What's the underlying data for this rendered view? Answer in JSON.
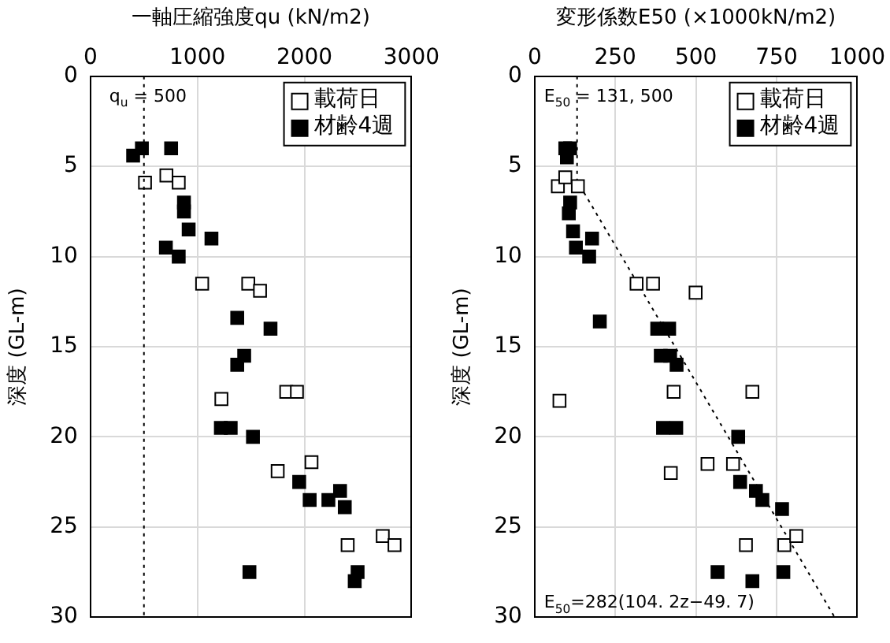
{
  "chart_data": [
    {
      "type": "scatter",
      "xlabel": "一軸圧縮強度qu (kN/m2)",
      "ylabel": "深度 (GL-m)",
      "xlim": [
        0,
        3000
      ],
      "xticks": [
        0,
        1000,
        2000,
        3000
      ],
      "ylim": [
        30,
        0
      ],
      "yticks": [
        0,
        5,
        10,
        15,
        20,
        25,
        30
      ],
      "grid": true,
      "legend": "top right",
      "marker": "square",
      "ref_lines": [
        {
          "axis": "x",
          "value": 500,
          "label": "q$_{u}$ = 500",
          "line_style": "dotted",
          "color": "#000000"
        }
      ],
      "series": [
        {
          "name": "載荷日",
          "color": "#ffffff",
          "x": [
            510,
            710,
            825,
            1044,
            1475,
            1585,
            1224,
            1830,
            1930,
            1750,
            2066,
            2404,
            2732,
            2842
          ],
          "values": [
            5.9,
            5.5,
            5.9,
            11.5,
            11.5,
            11.9,
            17.9,
            17.5,
            17.5,
            21.9,
            21.4,
            26.0,
            25.5,
            26.0
          ]
        },
        {
          "name": "材齢4週",
          "color": "#000000",
          "x": [
            481,
            399,
            754,
            874,
            874,
            918,
            1131,
            705,
            825,
            1372,
            1683,
            1437,
            1372,
            1219,
            1311,
            1519,
            1951,
            2049,
            2224,
            2333,
            2377,
            1486,
            2497,
            2470
          ],
          "values": [
            4.0,
            4.4,
            4.0,
            7.0,
            7.5,
            8.5,
            9.0,
            9.5,
            10.0,
            13.4,
            14.0,
            15.5,
            16.0,
            19.5,
            19.5,
            20.0,
            22.5,
            23.5,
            23.5,
            23.0,
            23.9,
            27.5,
            27.5,
            28.0
          ]
        }
      ]
    },
    {
      "type": "scatter",
      "xlabel": "変形係数E50 (×1000kN/m2)",
      "ylabel": "深度 (GL-m)",
      "xlim": [
        0,
        1000
      ],
      "xticks": [
        0,
        250,
        500,
        750,
        1000
      ],
      "ylim": [
        30,
        0
      ],
      "yticks": [
        0,
        5,
        10,
        15,
        20,
        25,
        30
      ],
      "grid": true,
      "legend": "top right",
      "marker": "square",
      "annotations": [
        "E$_{50}$ = 131, 500",
        "E$_{50}$=282(104. 2z−49. 7)"
      ],
      "series": [
        {
          "name": "載荷日",
          "color": "#ffffff",
          "x": [
            72,
            95,
            134,
            316,
            367,
            499,
            77,
            431,
            675,
            422,
            536,
            615,
            655,
            774,
            811
          ],
          "values": [
            6.1,
            5.6,
            6.1,
            11.5,
            11.5,
            12.0,
            18.0,
            17.5,
            17.5,
            22.0,
            21.5,
            21.5,
            26.0,
            26.0,
            25.5
          ]
        },
        {
          "name": "材齢4週",
          "color": "#000000",
          "x": [
            95,
            110,
            100,
            110,
            106,
            119,
            178,
            128,
            169,
            202,
            380,
            417,
            391,
            420,
            440,
            398,
            439,
            631,
            637,
            686,
            706,
            767,
            567,
            675,
            771
          ],
          "values": [
            4.0,
            4.0,
            4.5,
            7.0,
            7.6,
            8.6,
            9.0,
            9.5,
            10.0,
            13.6,
            14.0,
            14.0,
            15.5,
            15.5,
            16.0,
            19.5,
            19.5,
            20.0,
            22.5,
            23.0,
            23.5,
            24.0,
            27.5,
            28.0,
            27.5
          ]
        },
        {
          "type": "line",
          "color": "#000000",
          "line_style": "dotted",
          "marker": "none",
          "x": [
            131.5,
            131.5,
            930
          ],
          "values": [
            0,
            5.8,
            30
          ]
        }
      ]
    }
  ]
}
